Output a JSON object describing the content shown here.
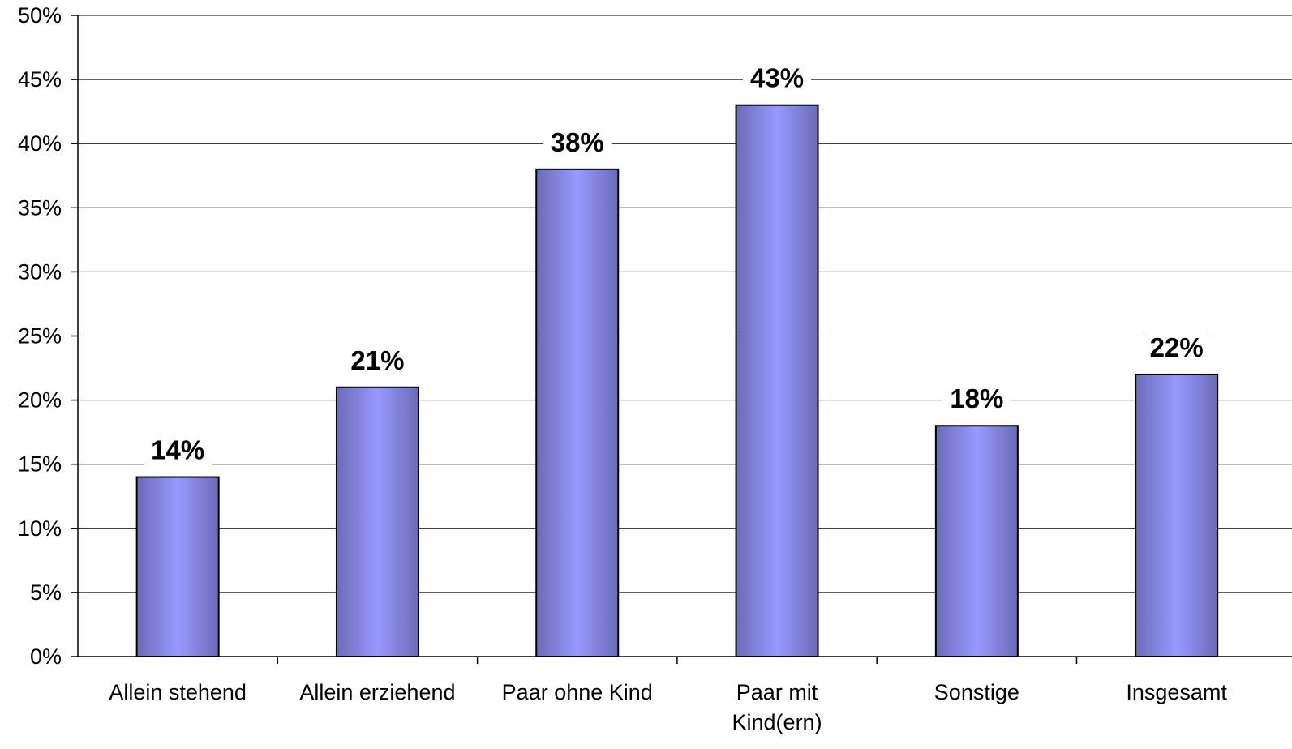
{
  "chart_data": {
    "type": "bar",
    "categories": [
      [
        "Allein stehend"
      ],
      [
        "Allein erziehend"
      ],
      [
        "Paar ohne Kind"
      ],
      [
        "Paar mit",
        "Kind(ern)"
      ],
      [
        "Sonstige"
      ],
      [
        "Insgesamt"
      ]
    ],
    "values": [
      14,
      21,
      38,
      43,
      18,
      22
    ],
    "data_labels": [
      "14%",
      "21%",
      "38%",
      "43%",
      "18%",
      "22%"
    ],
    "ylim": [
      0,
      50
    ],
    "yticks": [
      0,
      5,
      10,
      15,
      20,
      25,
      30,
      35,
      40,
      45,
      50
    ],
    "ytick_labels": [
      "0%",
      "5%",
      "10%",
      "15%",
      "20%",
      "25%",
      "30%",
      "35%",
      "40%",
      "45%",
      "50%"
    ],
    "grid": true,
    "legend": "none",
    "colors": {
      "bar_edge": "#6b6bb8",
      "bar_center": "#9999ff",
      "bar_stroke": "#000000",
      "grid": "#000000"
    }
  }
}
